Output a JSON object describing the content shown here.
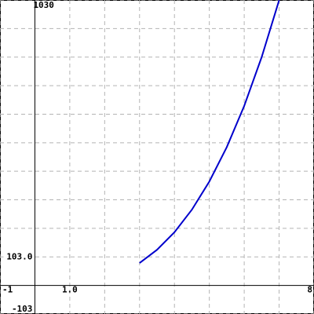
{
  "chart_data": {
    "type": "line",
    "x": [
      3,
      3.5,
      4,
      4.5,
      5,
      5.5,
      6,
      6.5,
      7
    ],
    "series": [
      {
        "color": "#0000cc",
        "values": [
          81,
          128.6,
          192,
          273.4,
          375,
          499.1,
          648,
          823.9,
          1029
        ]
      }
    ],
    "xlim": [
      -1,
      8
    ],
    "ylim": [
      -103,
      1030
    ],
    "xticks": [
      -1,
      {
        "value": 1,
        "label": "1.0"
      },
      8
    ],
    "yticks": [
      -103,
      {
        "value": 103,
        "label": "103.0"
      },
      1030
    ],
    "grid": {
      "x_step": 1,
      "y_step": 103
    }
  }
}
